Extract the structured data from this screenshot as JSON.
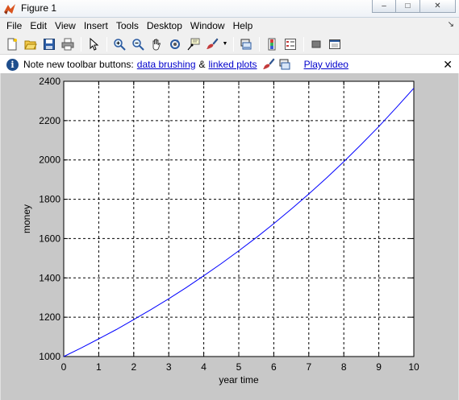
{
  "window": {
    "title": "Figure 1",
    "minimize": "‒",
    "maximize": "□",
    "close": "✕"
  },
  "menu": {
    "items": [
      "File",
      "Edit",
      "View",
      "Insert",
      "Tools",
      "Desktop",
      "Window",
      "Help"
    ],
    "dock_glyph": "↘"
  },
  "infobar": {
    "icon_glyph": "i",
    "text": "Note new toolbar buttons:",
    "link1": "data brushing",
    "amp": "&",
    "link2": "linked plots",
    "video": "Play video",
    "close": "✕"
  },
  "colors": {
    "line": "#0000ff",
    "figure_bg": "#c8c8c8",
    "axes_bg": "#ffffff"
  },
  "chart_data": {
    "type": "line",
    "title": "",
    "xlabel": "year time",
    "ylabel": "money",
    "xlim": [
      0,
      10
    ],
    "ylim": [
      1000,
      2400
    ],
    "xticks": [
      "0",
      "1",
      "2",
      "3",
      "4",
      "5",
      "6",
      "7",
      "8",
      "9",
      "10"
    ],
    "yticks": [
      "1000",
      "1200",
      "1400",
      "1600",
      "1800",
      "2000",
      "2200",
      "2400"
    ],
    "grid": true,
    "series": [
      {
        "x": [
          0,
          0.5,
          1,
          1.5,
          2,
          2.5,
          3,
          3.5,
          4,
          4.5,
          5,
          5.5,
          6,
          6.5,
          7,
          7.5,
          8,
          8.5,
          9,
          9.5,
          10
        ],
        "values": [
          1000,
          1044,
          1090,
          1137,
          1188,
          1240,
          1294,
          1351,
          1411,
          1473,
          1538,
          1605,
          1676,
          1750,
          1827,
          1907,
          1991,
          2079,
          2170,
          2266,
          2365
        ]
      }
    ]
  }
}
